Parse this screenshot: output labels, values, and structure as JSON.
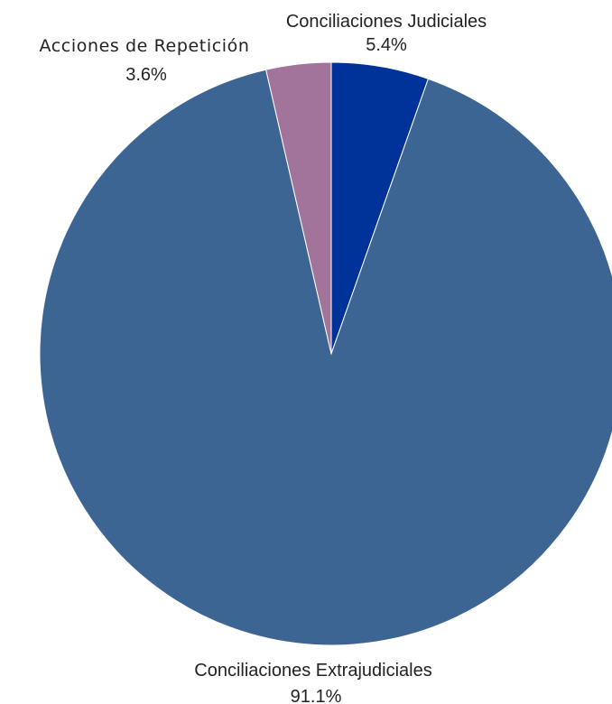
{
  "chart_data": {
    "type": "pie",
    "title": "",
    "start_angle_deg": 0,
    "direction": "clockwise",
    "slices": [
      {
        "label": "Conciliaciones Judiciales",
        "value": 5.4,
        "value_label": "5.4%",
        "color": "#003399"
      },
      {
        "label": "Conciliaciones Extrajudiciales",
        "value": 91.1,
        "value_label": "91.1%",
        "color": "#3d6594"
      },
      {
        "label": "Acciones de Repetición",
        "value": 3.6,
        "value_label": "3.6%",
        "color": "#a2739b"
      }
    ],
    "legend": "none",
    "labels_outside": true
  }
}
